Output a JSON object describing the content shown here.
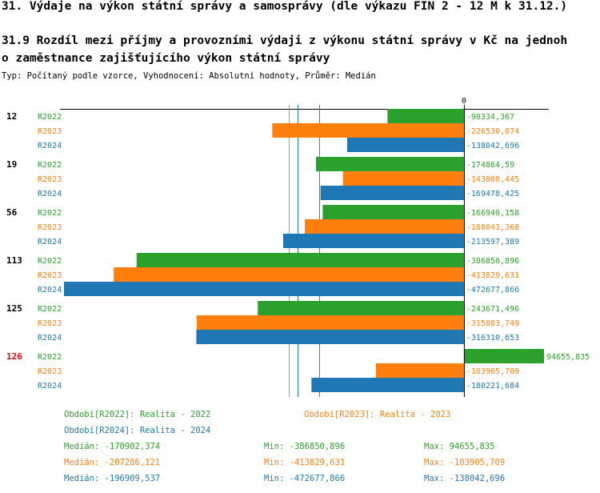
{
  "header": {
    "title": "31. Výdaje na výkon státní správy a samosprávy (dle výkazu FIN 2 - 12 M k 31.12.)",
    "subtitle_line1": "31.9 Rozdíl mezi příjmy a provozními výdaji z výkonu státní správy v Kč na jednoh",
    "subtitle_line2": "o zaměstnance zajišťujícího výkon státní správy",
    "info": "Typ: Počítaný podle vzorce, Vyhodnocení: Absolutní hodnoty, Průměr: Medián"
  },
  "colors": {
    "R2022": "#2ca02c",
    "R2023": "#ff7f0e",
    "R2024": "#1f77b4",
    "highlight": "#e00000",
    "axis": "#000000"
  },
  "chart_data": {
    "type": "bar",
    "orientation": "horizontal",
    "zero_label": "0",
    "xlim": [
      -472677.866,
      94655.835
    ],
    "categories": [
      {
        "label": "12",
        "highlight": false
      },
      {
        "label": "19",
        "highlight": false
      },
      {
        "label": "56",
        "highlight": false
      },
      {
        "label": "113",
        "highlight": false
      },
      {
        "label": "125",
        "highlight": false
      },
      {
        "label": "126",
        "highlight": true
      }
    ],
    "series": [
      {
        "key": "R2022",
        "name": "R2022",
        "values": [
          -90334.367,
          -174864.59,
          -166940.158,
          -386850.896,
          -243671.496,
          94655.835
        ],
        "labels": [
          "-90334,367",
          "-174864,59",
          "-166940,158",
          "-386850,896",
          "-243671,496",
          "94655,835"
        ]
      },
      {
        "key": "R2023",
        "name": "R2023",
        "values": [
          -226530.874,
          -143008.445,
          -188041.368,
          -413829.631,
          -315883.749,
          -103905.709
        ],
        "labels": [
          "-226530,874",
          "-143008,445",
          "-188041,368",
          "-413829,631",
          "-315883,749",
          "-103905,709"
        ]
      },
      {
        "key": "R2024",
        "name": "R2024",
        "values": [
          -138042.696,
          -169478.425,
          -213597.389,
          -472677.866,
          -316310.653,
          -180221.684
        ],
        "labels": [
          "-138042,696",
          "-169478,425",
          "-213597,389",
          "-472677,866",
          "-316310,653",
          "-180221,684"
        ]
      }
    ],
    "medians": {
      "R2022": -170902.374,
      "R2023": -207286.121,
      "R2024": -196909.537
    }
  },
  "legend": {
    "period_r2022": "Období[R2022]: Realita - 2022",
    "period_r2023": "Období[R2023]: Realita - 2023",
    "period_r2024": "Období[R2024]: Realita - 2024",
    "r2022": {
      "median": "Medián: -170902,374",
      "min": "Min: -386850,896",
      "max": "Max: 94655,835"
    },
    "r2023": {
      "median": "Medián: -207286,121",
      "min": "Min: -413829,631",
      "max": "Max: -103905,709"
    },
    "r2024": {
      "median": "Medián: -196909,537",
      "min": "Min: -472677,866",
      "max": "Max: -138042,696"
    }
  }
}
